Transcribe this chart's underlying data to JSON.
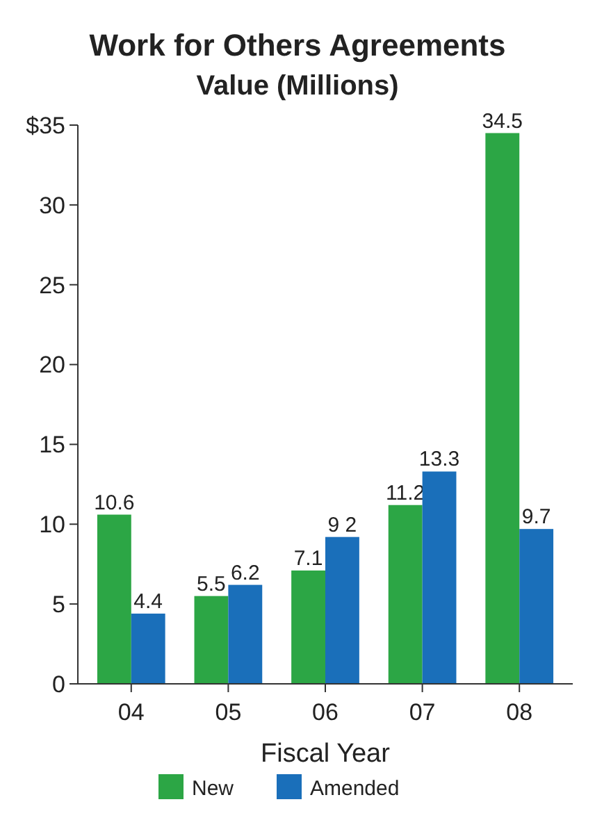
{
  "chart_data": {
    "type": "bar",
    "title": "Work for Others Agreements",
    "subtitle": "Value (Millions)",
    "xlabel": "Fiscal Year",
    "categories": [
      "04",
      "05",
      "06",
      "07",
      "08"
    ],
    "series": [
      {
        "name": "New",
        "color": "#2ca645",
        "values": [
          10.6,
          5.5,
          7.1,
          11.2,
          34.5
        ],
        "value_labels": [
          "10.6",
          "5.5",
          "7.1",
          "11.2",
          "34.5"
        ]
      },
      {
        "name": "Amended",
        "color": "#1a6fba",
        "values": [
          4.4,
          6.2,
          9.2,
          13.3,
          9.7
        ],
        "value_labels": [
          "4.4",
          "6.2",
          "9 2",
          "13.3",
          "9.7"
        ]
      }
    ],
    "ylim": [
      0,
      35
    ],
    "yticks": [
      0,
      5,
      10,
      15,
      20,
      25,
      30,
      {
        "value": 35,
        "label": "$35"
      }
    ],
    "grid": false,
    "legend": "bottom"
  }
}
